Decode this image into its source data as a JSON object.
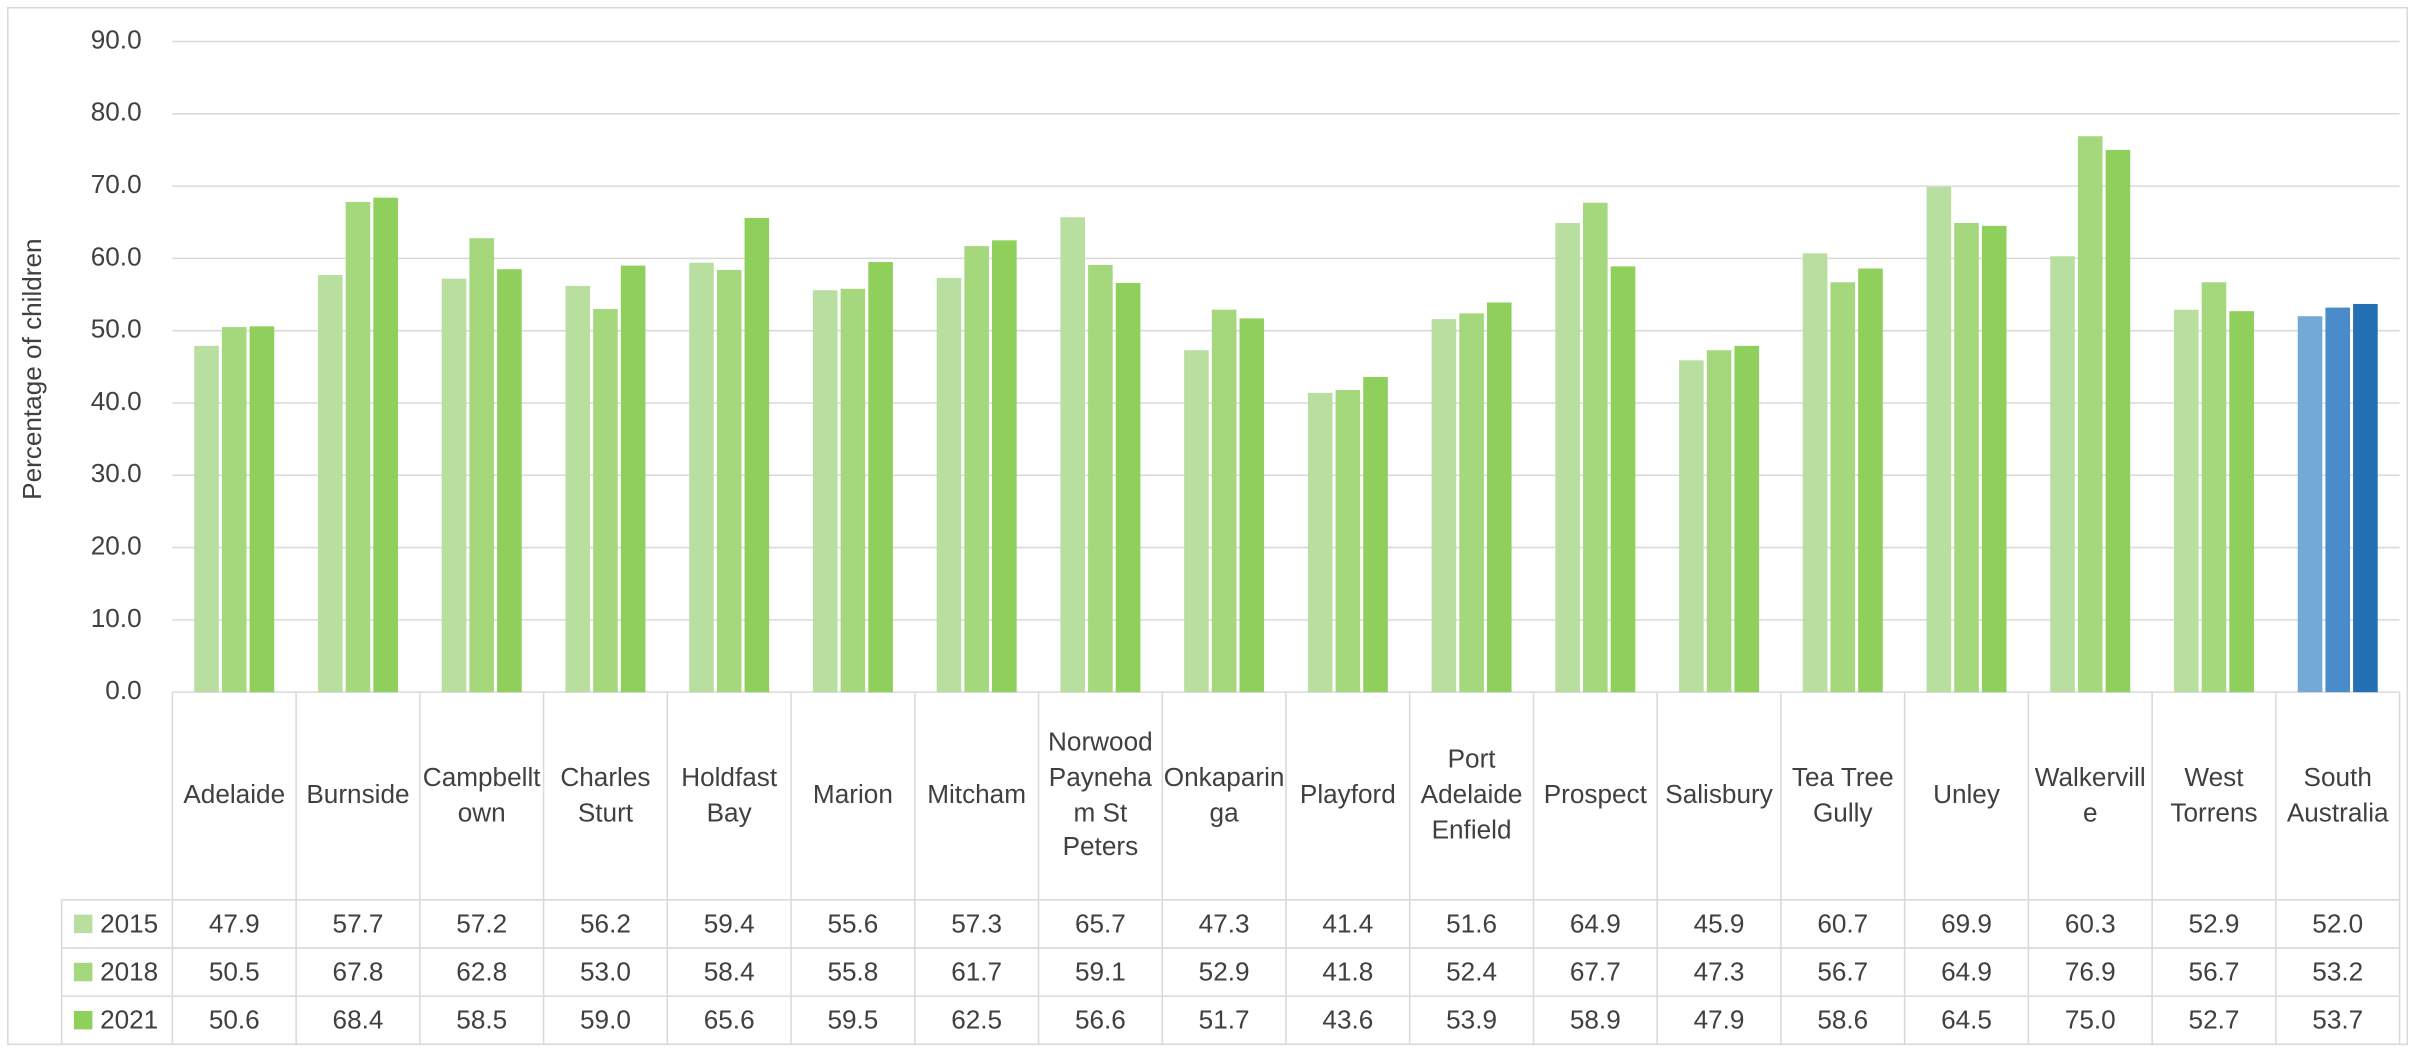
{
  "chart_data": {
    "type": "bar",
    "y_label": "Percentage of children",
    "categories": [
      "Adelaide",
      "Burnside",
      "Campbelltown",
      "Charles Sturt",
      "Holdfast Bay",
      "Marion",
      "Mitcham",
      "Norwood Payneham St Peters",
      "Onkaparinga",
      "Playford",
      "Port Adelaide Enfield",
      "Prospect",
      "Salisbury",
      "Tea Tree Gully",
      "Unley",
      "Walkerville",
      "West Torrens",
      "South Australia"
    ],
    "series": [
      {
        "name": "2015",
        "color": "#b9dfa0",
        "colors": [
          "#b9dfa0",
          "#b9dfa0",
          "#b9dfa0",
          "#b9dfa0",
          "#b9dfa0",
          "#b9dfa0",
          "#b9dfa0",
          "#b9dfa0",
          "#b9dfa0",
          "#b9dfa0",
          "#b9dfa0",
          "#b9dfa0",
          "#b9dfa0",
          "#b9dfa0",
          "#b9dfa0",
          "#b9dfa0",
          "#b9dfa0",
          "#73a9d6"
        ],
        "values": [
          47.9,
          57.7,
          57.2,
          56.2,
          59.4,
          55.6,
          57.3,
          65.7,
          47.3,
          41.4,
          51.6,
          64.9,
          45.9,
          60.7,
          69.9,
          60.3,
          52.9,
          52.0
        ],
        "value_labels": [
          "47.9",
          "57.7",
          "57.2",
          "56.2",
          "59.4",
          "55.6",
          "57.3",
          "65.7",
          "47.3",
          "41.4",
          "51.6",
          "64.9",
          "45.9",
          "60.7",
          "69.9",
          "60.3",
          "52.9",
          "52.0"
        ]
      },
      {
        "name": "2018",
        "color": "#a5d87d",
        "colors": [
          "#a5d87d",
          "#a5d87d",
          "#a5d87d",
          "#a5d87d",
          "#a5d87d",
          "#a5d87d",
          "#a5d87d",
          "#a5d87d",
          "#a5d87d",
          "#a5d87d",
          "#a5d87d",
          "#a5d87d",
          "#a5d87d",
          "#a5d87d",
          "#a5d87d",
          "#a5d87d",
          "#a5d87d",
          "#4a8cc9"
        ],
        "values": [
          50.5,
          67.8,
          62.8,
          53.0,
          58.4,
          55.8,
          61.7,
          59.1,
          52.9,
          41.8,
          52.4,
          67.7,
          47.3,
          56.7,
          64.9,
          76.9,
          56.7,
          53.2
        ],
        "value_labels": [
          "50.5",
          "67.8",
          "62.8",
          "53.0",
          "58.4",
          "55.8",
          "61.7",
          "59.1",
          "52.9",
          "41.8",
          "52.4",
          "67.7",
          "47.3",
          "56.7",
          "64.9",
          "76.9",
          "56.7",
          "53.2"
        ]
      },
      {
        "name": "2021",
        "color": "#8fcf5c",
        "colors": [
          "#8fcf5c",
          "#8fcf5c",
          "#8fcf5c",
          "#8fcf5c",
          "#8fcf5c",
          "#8fcf5c",
          "#8fcf5c",
          "#8fcf5c",
          "#8fcf5c",
          "#8fcf5c",
          "#8fcf5c",
          "#8fcf5c",
          "#8fcf5c",
          "#8fcf5c",
          "#8fcf5c",
          "#8fcf5c",
          "#8fcf5c",
          "#2470b5"
        ],
        "values": [
          50.6,
          68.4,
          58.5,
          59.0,
          65.6,
          59.5,
          62.5,
          56.6,
          51.7,
          43.6,
          53.9,
          58.9,
          47.9,
          58.6,
          64.5,
          75.0,
          52.7,
          53.7
        ],
        "value_labels": [
          "50.6",
          "68.4",
          "58.5",
          "59.0",
          "65.6",
          "59.5",
          "62.5",
          "56.6",
          "51.7",
          "43.6",
          "53.9",
          "58.9",
          "47.9",
          "58.6",
          "64.5",
          "75.0",
          "52.7",
          "53.7"
        ]
      }
    ],
    "ylim": [
      0,
      90
    ],
    "yticks": [
      {
        "value": 0,
        "label": "0.0"
      },
      {
        "value": 10,
        "label": "10.0"
      },
      {
        "value": 20,
        "label": "20.0"
      },
      {
        "value": 30,
        "label": "30.0"
      },
      {
        "value": 40,
        "label": "40.0"
      },
      {
        "value": 50,
        "label": "50.0"
      },
      {
        "value": 60,
        "label": "60.0"
      },
      {
        "value": 70,
        "label": "70.0"
      },
      {
        "value": 80,
        "label": "80.0"
      },
      {
        "value": 90,
        "label": "90.0"
      }
    ],
    "grid": true,
    "legend": "table"
  }
}
